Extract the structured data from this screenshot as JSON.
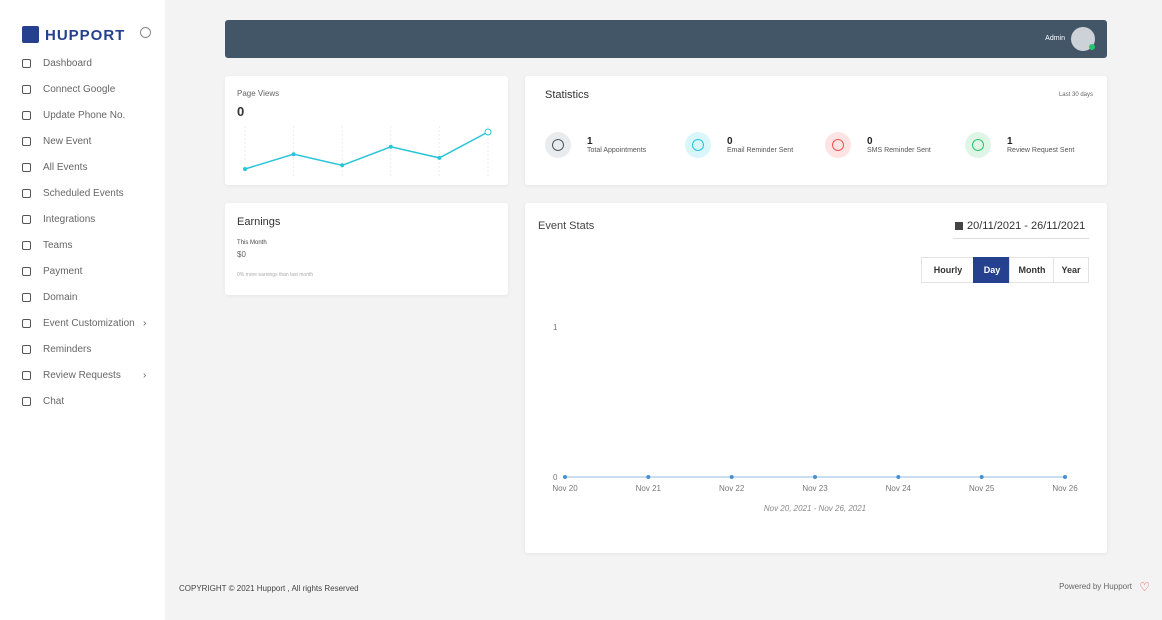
{
  "sidebar": {
    "brand": "HUPPORT",
    "menu": [
      {
        "label": "Dashboard"
      },
      {
        "label": "Connect Google"
      },
      {
        "label": "Update Phone No."
      },
      {
        "label": "New Event"
      },
      {
        "label": "All Events"
      },
      {
        "label": "Scheduled Events"
      },
      {
        "label": "Integrations"
      },
      {
        "label": "Teams"
      },
      {
        "label": "Payment"
      },
      {
        "label": "Domain"
      },
      {
        "label": "Event Customization",
        "submenu": true
      },
      {
        "label": "Reminders"
      },
      {
        "label": "Review Requests",
        "submenu": true
      },
      {
        "label": "Chat"
      }
    ]
  },
  "header": {
    "user": "Admin"
  },
  "page_views": {
    "title": "Page Views",
    "total": "0",
    "chart": {
      "type": "line",
      "values": [
        1,
        3,
        1.5,
        4,
        2.5,
        6
      ],
      "color": "#2bc4d8"
    }
  },
  "statistics": {
    "title": "Statistics",
    "period": "Last 30 days",
    "items": [
      {
        "count": "1",
        "label": "Total Appointments",
        "color": "#e9ecef",
        "icon_color": "#555"
      },
      {
        "count": "0",
        "label": "Email Reminder Sent",
        "color": "#d9f6fa",
        "icon_color": "#1ec6dc"
      },
      {
        "count": "0",
        "label": "SMS Reminder Sent",
        "color": "#fde3e3",
        "icon_color": "#ea5455"
      },
      {
        "count": "1",
        "label": "Review Request Sent",
        "color": "#dff5e6",
        "icon_color": "#28c76f"
      }
    ]
  },
  "earnings": {
    "title": "Earnings",
    "period": "This Month",
    "amount": "$0",
    "note": "0% more earnings than last month"
  },
  "event_stats": {
    "title": "Event Stats",
    "date_range": "20/11/2021 - 26/11/2021",
    "buttons": [
      {
        "label": "Hourly"
      },
      {
        "label": "Day",
        "active": true
      },
      {
        "label": "Month"
      },
      {
        "label": "Year"
      }
    ],
    "chart_data": {
      "type": "line",
      "categories": [
        "Nov 20",
        "Nov 21",
        "Nov 22",
        "Nov 23",
        "Nov 24",
        "Nov 25",
        "Nov 26"
      ],
      "values": [
        0,
        0,
        0,
        0,
        0,
        0,
        0
      ],
      "ylim": [
        0,
        1
      ],
      "yticks": [
        0,
        1
      ],
      "xlabel": "Nov 20, 2021 - Nov 26, 2021",
      "color": "#4a8fd0"
    }
  },
  "footer": {
    "copyright": "COPYRIGHT © 2021 Hupport , All rights Reserved",
    "powered": "Powered by Hupport"
  }
}
